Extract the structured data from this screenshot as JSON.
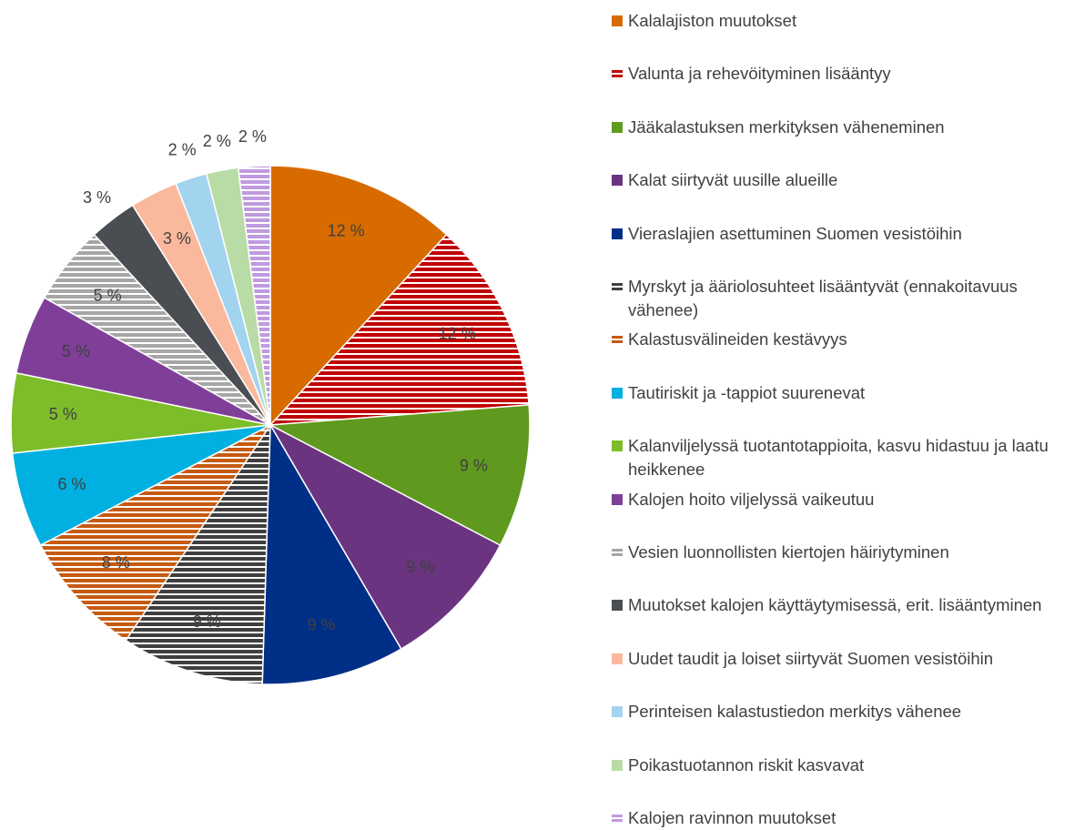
{
  "chart_data": {
    "type": "pie",
    "categories": [
      "Kalalajiston muutokset",
      "Valunta ja rehevöityminen lisääntyy",
      "Jääkalastuksen merkityksen väheneminen",
      "Kalat siirtyvät uusille alueille",
      "Vieraslajien asettuminen Suomen vesistöihin",
      "Myrskyt ja ääriolosuhteet lisääntyvät (ennakoitavuus vähenee)",
      "Kalastusvälineiden kestävyys",
      "Tautiriskit ja -tappiot suurenevat",
      "Kalanviljelyssä tuotantotappioita, kasvu hidastuu ja laatu heikkenee",
      "Kalojen hoito viljelyssä vaikeutuu",
      "Vesien luonnollisten kiertojen häiriytyminen",
      "Muutokset kalojen käyttäytymisessä, erit. lisääntyminen",
      "Uudet taudit ja loiset siirtyvät Suomen vesistöihin",
      "Perinteisen kalastustiedon merkitys vähenee",
      "Poikastuotannon riskit kasvavat",
      "Kalojen ravinnon muutokset"
    ],
    "values": [
      12,
      12,
      9,
      9,
      9,
      9,
      8,
      6,
      5,
      5,
      5,
      3,
      3,
      2,
      2,
      2
    ],
    "value_labels": [
      "12 %",
      "12 %",
      "9 %",
      "9 %",
      "9 %",
      "9 %",
      "8 %",
      "6 %",
      "5 %",
      "5 %",
      "5 %",
      "3 %",
      "3 %",
      "2 %",
      "2 %",
      "2 %"
    ],
    "colors": [
      "#d86b00",
      "#c00000",
      "#5f9a1e",
      "#6b3480",
      "#002f87",
      "#3f3f3f",
      "#c55a11",
      "#00b0e0",
      "#7dbd2a",
      "#7f3f98",
      "#a6a6a6",
      "#4a4e53",
      "#fab99d",
      "#a3d4ef",
      "#b9dca6",
      "#c09ae0"
    ],
    "patterns": [
      "solid",
      "horizontal",
      "solid",
      "solid",
      "solid",
      "horizontal",
      "horizontal",
      "solid",
      "solid",
      "solid",
      "horizontal",
      "solid",
      "solid",
      "solid",
      "solid",
      "horizontal"
    ],
    "legend": "right"
  }
}
